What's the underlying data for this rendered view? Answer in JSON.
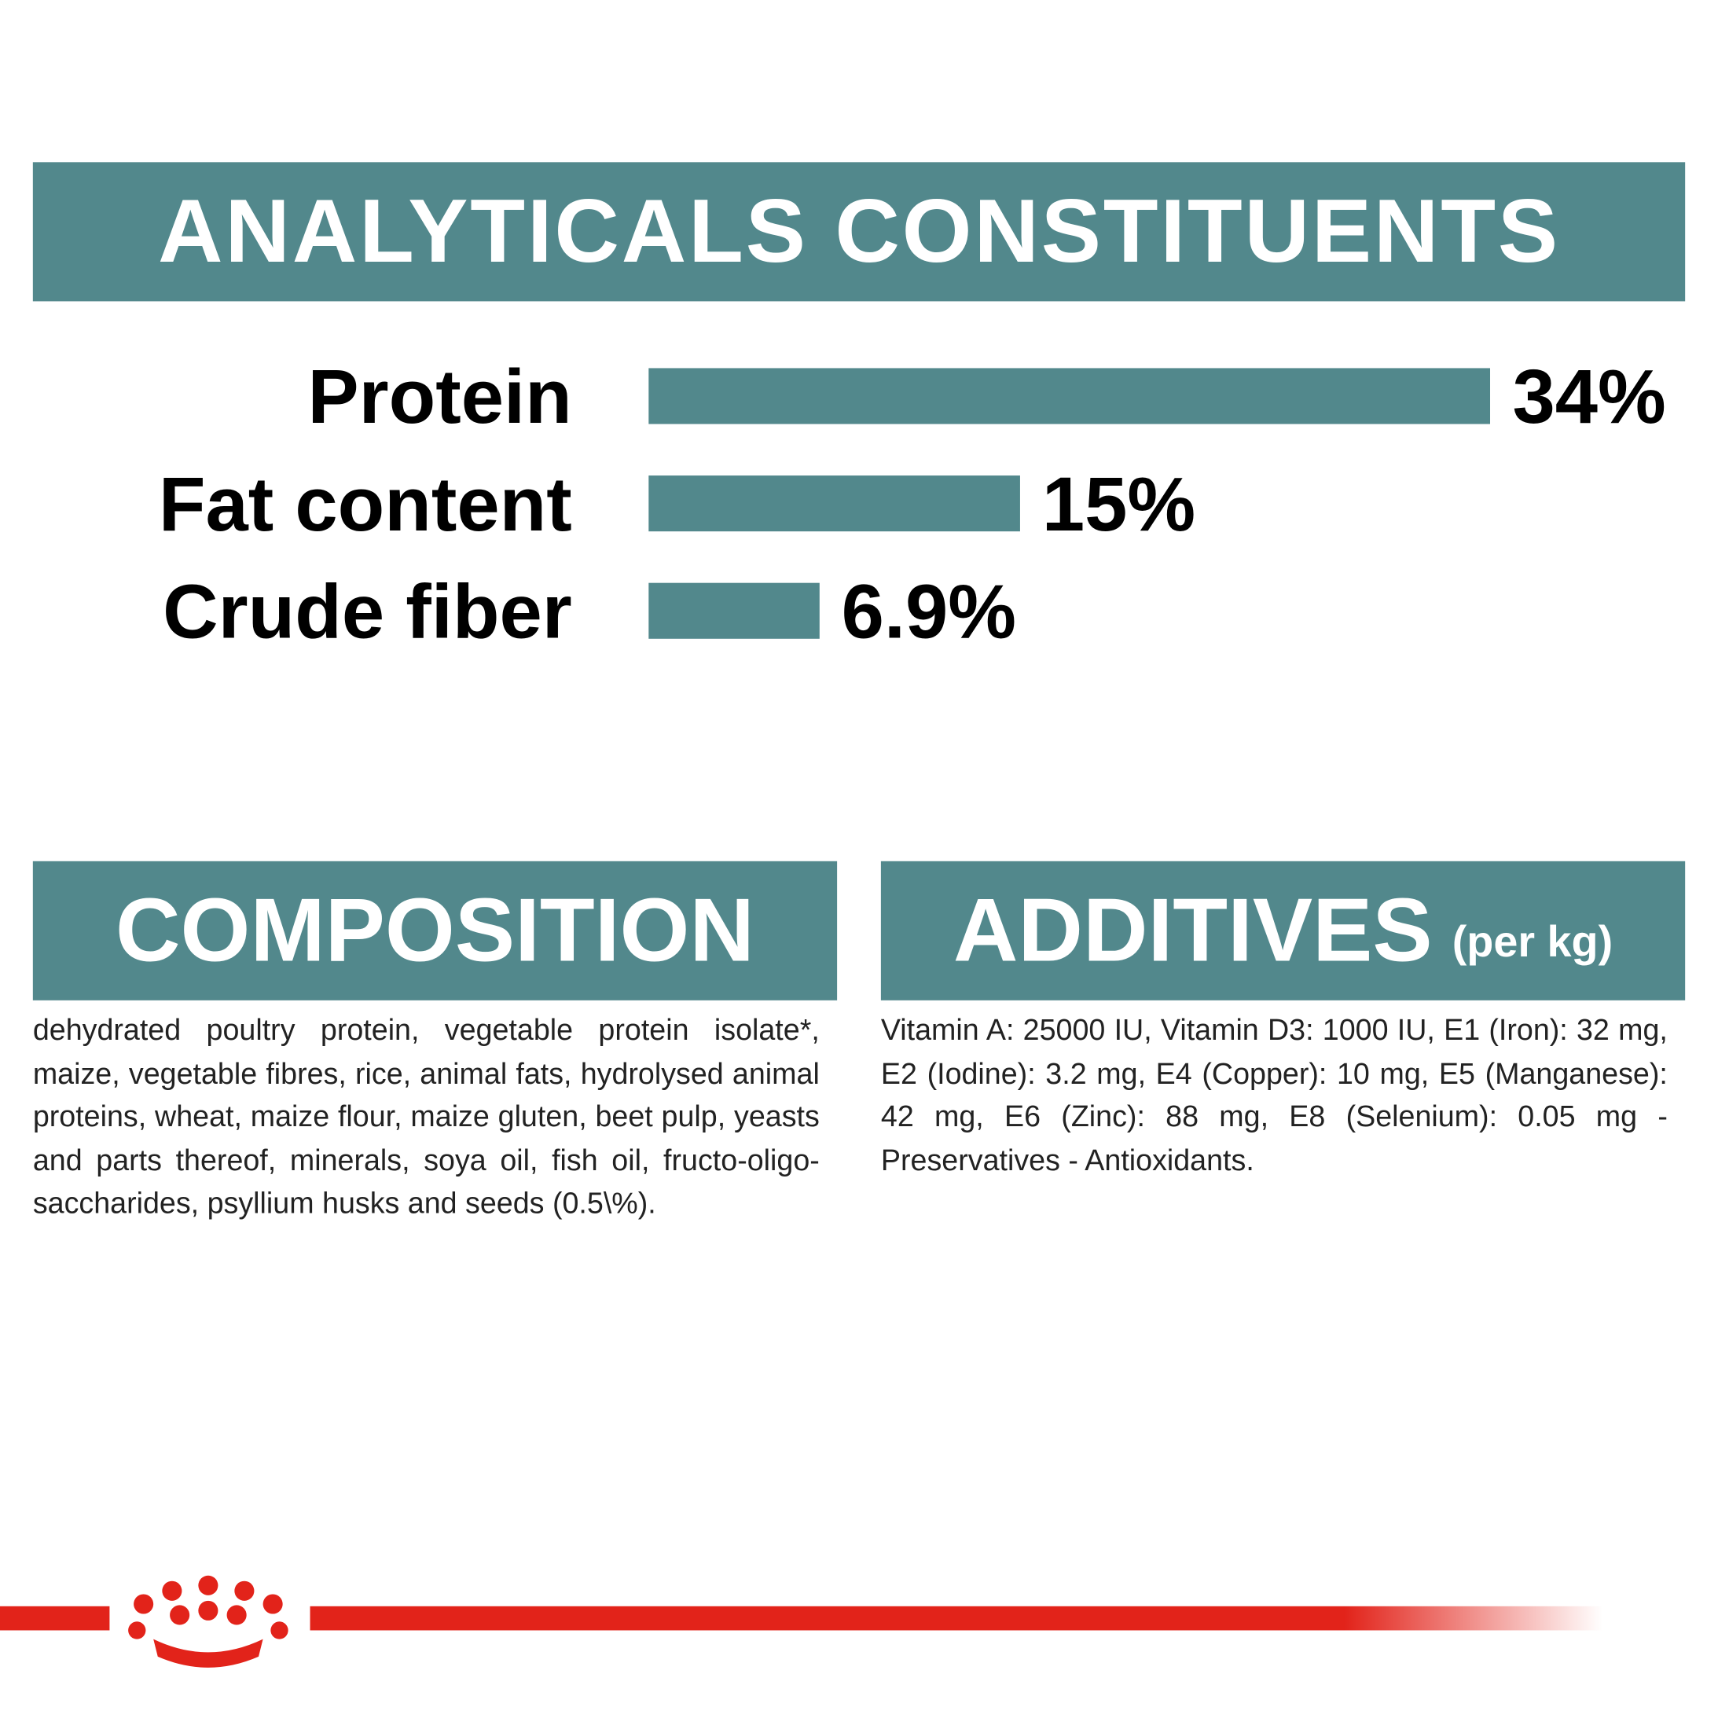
{
  "chart_data": {
    "type": "bar",
    "orientation": "horizontal",
    "title": "ANALYTICALS CONSTITUENTS",
    "categories": [
      "Protein",
      "Fat content",
      "Crude fiber"
    ],
    "values": [
      34,
      15,
      6.9
    ],
    "value_labels": [
      "34%",
      "15%",
      "6.9%"
    ],
    "color": "#52888c"
  },
  "composition": {
    "title": "COMPOSITION",
    "text": "dehydrated poultry protein, vegetable protein isolate*, maize, vegetable fibres, rice, animal fats, hydrolysed animal proteins, wheat, maize flour, maize gluten, beet pulp, yeasts and parts thereof, minerals, soya oil, fish oil, fructo-oligo-saccharides, psyllium husks and seeds (0.5\\%)."
  },
  "additives": {
    "title": "ADDITIVES",
    "subtitle": "(per kg)",
    "text": "Vitamin A: 25000 IU, Vitamin D3: 1000 IU, E1 (Iron): 32 mg, E2 (Iodine): 3.2 mg, E4 (Copper): 10 mg, E5 (Manganese): 42 mg, E6 (Zinc): 88 mg, E8 (Selenium): 0.05 mg - Preservatives - Antioxidants."
  }
}
